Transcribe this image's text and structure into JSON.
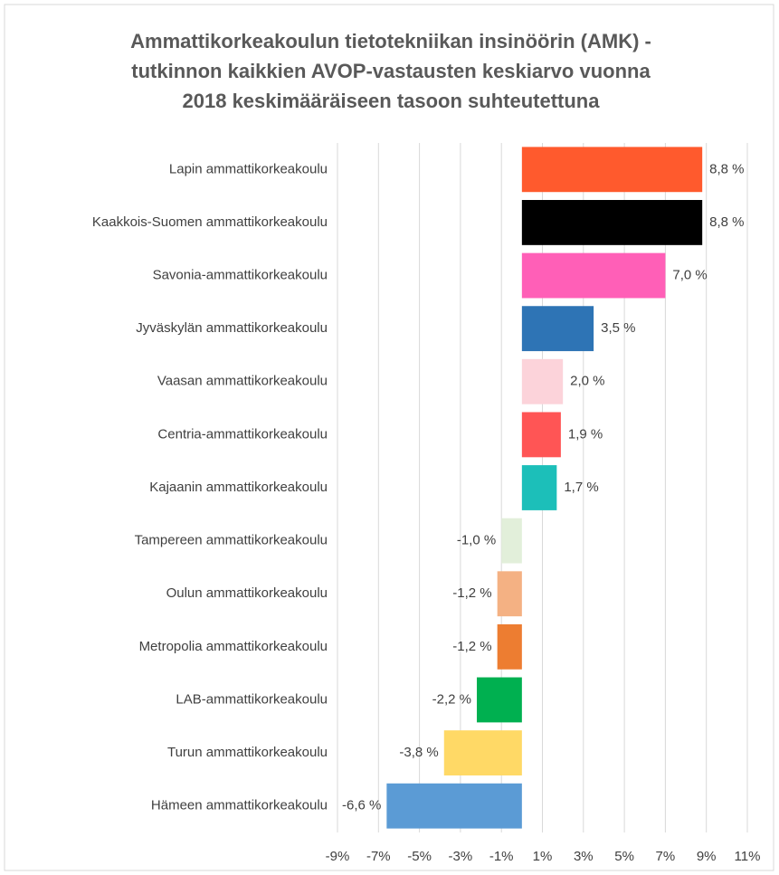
{
  "chart_data": {
    "type": "barh",
    "title": [
      "Ammattikorkeakoulun tietotekniikan insinöörin (AMK) -",
      "tutkinnon kaikkien AVOP-vastausten keskiarvo vuonna",
      "2018 keskimääräiseen tasoon suhteutettuna"
    ],
    "categories": [
      "Lapin ammattikorkeakoulu",
      "Kaakkois-Suomen ammattikorkeakoulu",
      "Savonia-ammattikorkeakoulu",
      "Jyväskylän ammattikorkeakoulu",
      "Vaasan ammattikorkeakoulu",
      "Centria-ammattikorkeakoulu",
      "Kajaanin ammattikorkeakoulu",
      "Tampereen ammattikorkeakoulu",
      "Oulun ammattikorkeakoulu",
      "Metropolia ammattikorkeakoulu",
      "LAB-ammattikorkeakoulu",
      "Turun ammattikorkeakoulu",
      "Hämeen ammattikorkeakoulu"
    ],
    "values": [
      8.8,
      8.8,
      7.0,
      3.5,
      2.0,
      1.9,
      1.7,
      -1.0,
      -1.2,
      -1.2,
      -2.2,
      -3.8,
      -6.6
    ],
    "value_labels": [
      "8,8 %",
      "8,8 %",
      "7,0 %",
      "3,5 %",
      "2,0 %",
      "1,9 %",
      "1,7 %",
      "-1,0 %",
      "-1,2 %",
      "-1,2 %",
      "-2,2 %",
      "-3,8 %",
      "-6,6 %"
    ],
    "colors": [
      "#ff5a2d",
      "#000000",
      "#ff5fb7",
      "#2e74b5",
      "#fcd3da",
      "#ff5555",
      "#1cbfb9",
      "#e2efda",
      "#f4b183",
      "#ed7d31",
      "#00b050",
      "#ffd966",
      "#5b9bd5"
    ],
    "xlim": [
      -9,
      11
    ],
    "xticks": [
      {
        "value": -9,
        "label": "-9%"
      },
      {
        "value": -7,
        "label": "-7%"
      },
      {
        "value": -5,
        "label": "-5%"
      },
      {
        "value": -3,
        "label": "-3%"
      },
      {
        "value": -1,
        "label": "-1%"
      },
      {
        "value": 1,
        "label": "1%"
      },
      {
        "value": 3,
        "label": "3%"
      },
      {
        "value": 5,
        "label": "5%"
      },
      {
        "value": 7,
        "label": "7%"
      },
      {
        "value": 9,
        "label": "9%"
      },
      {
        "value": 11,
        "label": "11%"
      }
    ],
    "grid": true
  }
}
